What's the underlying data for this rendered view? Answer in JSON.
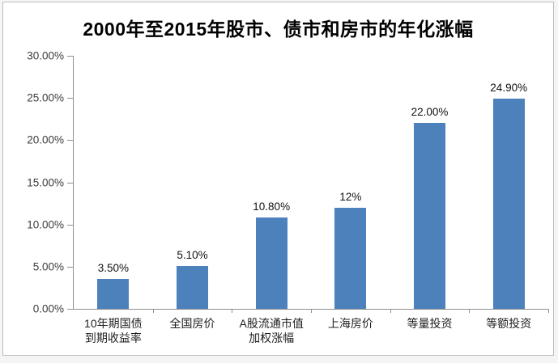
{
  "chart_data": {
    "type": "bar",
    "title": "2000年至2015年股市、债市和房市的年化涨幅",
    "categories": [
      "10年期国债到期收益率",
      "全国房价",
      "A股流通市值加权涨幅",
      "上海房价",
      "等量投资",
      "等额投资"
    ],
    "x_labels": [
      "10年期国债\n到期收益率",
      "全国房价",
      "A股流通市值\n加权涨幅",
      "上海房价",
      "等量投资",
      "等额投资"
    ],
    "values": [
      3.5,
      5.1,
      10.8,
      12,
      22,
      24.9
    ],
    "data_labels": [
      "3.50%",
      "5.10%",
      "10.80%",
      "12%",
      "22.00%",
      "24.90%"
    ],
    "y_ticks": [
      "30.00%",
      "25.00%",
      "20.00%",
      "15.00%",
      "10.00%",
      "5.00%",
      "0.00%"
    ],
    "ylim": [
      0,
      30
    ],
    "xlabel": "",
    "ylabel": "",
    "grid": false,
    "legend": "none",
    "bar_color": "#4d81bc",
    "axis_color": "#8e8e8e"
  }
}
